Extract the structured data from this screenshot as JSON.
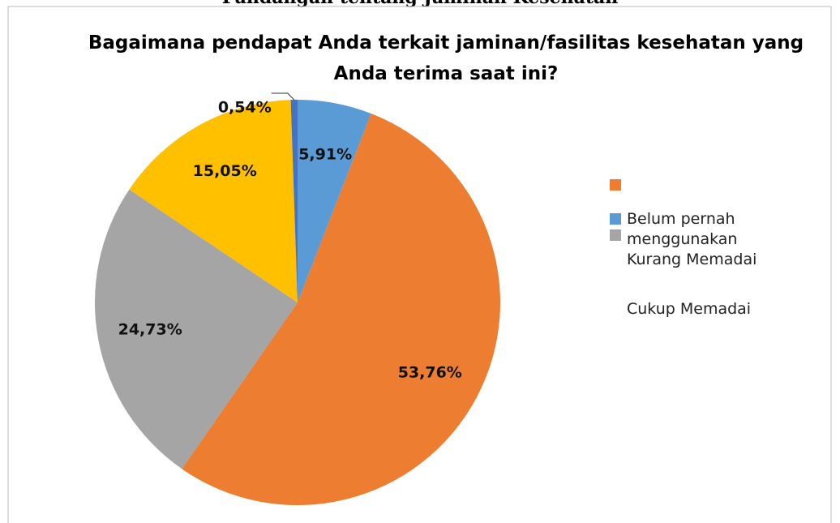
{
  "header": {
    "title": "Pandangan tentang Jaminan Kesehatan"
  },
  "chart_data": {
    "type": "pie",
    "title": "Bagaimana pendapat Anda terkait jaminan/fasilitas kesehatan yang Anda terima saat ini?",
    "categories": [
      "Belum pernah menggunakan",
      null,
      "Kurang Memadai",
      "Cukup Memadai",
      null
    ],
    "values": [
      5.91,
      53.76,
      24.73,
      15.05,
      0.54
    ],
    "value_labels": [
      "5,91%",
      "53,76%",
      "24,73%",
      "15,05%",
      "0,54%"
    ],
    "colors": [
      "#5b9bd5",
      "#ed7d31",
      "#a5a5a5",
      "#ffc000",
      "#4472c4"
    ]
  }
}
